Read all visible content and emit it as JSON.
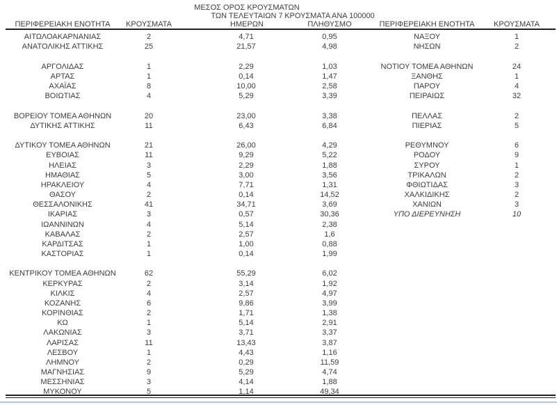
{
  "columns": {
    "left": {
      "region_header": "ΠΕΡΙΦΕΡΕΙΑΚΗ ΕΝΟΤΗΤΑ",
      "cases_header": "ΚΡΟΥΣΜΑΤΑ",
      "avg7_header_lines": [
        "ΜΕΣΟΣ ΟΡΟΣ ΚΡΟΥΣΜΑΤΩΝ",
        "ΤΩΝ ΤΕΛΕΥΤΑΙΩΝ 7",
        "ΗΜΕΡΩΝ"
      ],
      "per100k_header_lines": [
        "ΚΡΟΥΣΜΑΤΑ ΑΝΑ 100000",
        "ΠΛΗΘΥΣΜΟ"
      ]
    },
    "right": {
      "region_header": "ΠΕΡΙΦΕΡΕΙΑΚΗ ΕΝΟΤΗΤΑ",
      "cases_header": "ΚΡΟΥΣΜΑΤΑ"
    }
  },
  "left_rows": [
    {
      "region": "ΑΙΤΩΛΟΑΚΑΡΝΑΝΙΑΣ",
      "cases": "2",
      "avg7": "4,71",
      "per100k": "0,95"
    },
    {
      "region": "ΑΝΑΤΟΛΙΚΗΣ ΑΤΤΙΚΗΣ",
      "cases": "25",
      "avg7": "21,57",
      "per100k": "4,98"
    },
    null,
    {
      "region": "ΑΡΓΟΛΙΔΑΣ",
      "cases": "1",
      "avg7": "2,29",
      "per100k": "1,03"
    },
    {
      "region": "ΑΡΤΑΣ",
      "cases": "1",
      "avg7": "0,14",
      "per100k": "1,47"
    },
    {
      "region": "ΑΧΑΪΑΣ",
      "cases": "8",
      "avg7": "10,00",
      "per100k": "2,58"
    },
    {
      "region": "ΒΟΙΩΤΙΑΣ",
      "cases": "4",
      "avg7": "5,29",
      "per100k": "3,39"
    },
    null,
    {
      "region": "ΒΟΡΕΙΟΥ ΤΟΜΕΑ ΑΘΗΝΩΝ",
      "cases": "20",
      "avg7": "23,00",
      "per100k": "3,38"
    },
    {
      "region": "ΔΥΤΙΚΗΣ ΑΤΤΙΚΗΣ",
      "cases": "11",
      "avg7": "6,43",
      "per100k": "6,84"
    },
    null,
    {
      "region": "ΔΥΤΙΚΟΥ ΤΟΜΕΑ ΑΘΗΝΩΝ",
      "cases": "21",
      "avg7": "26,00",
      "per100k": "4,29"
    },
    {
      "region": "ΕΥΒΟΙΑΣ",
      "cases": "11",
      "avg7": "9,29",
      "per100k": "5,22"
    },
    {
      "region": "ΗΛΕΙΑΣ",
      "cases": "3",
      "avg7": "2,29",
      "per100k": "1,88"
    },
    {
      "region": "ΗΜΑΘΙΑΣ",
      "cases": "5",
      "avg7": "3,00",
      "per100k": "3,56"
    },
    {
      "region": "ΗΡΑΚΛΕΙΟΥ",
      "cases": "4",
      "avg7": "7,71",
      "per100k": "1,31"
    },
    {
      "region": "ΘΑΣΟΥ",
      "cases": "2",
      "avg7": "0,14",
      "per100k": "14,52"
    },
    {
      "region": "ΘΕΣΣΑΛΟΝΙΚΗΣ",
      "cases": "41",
      "avg7": "34,71",
      "per100k": "3,69"
    },
    {
      "region": "ΙΚΑΡΙΑΣ",
      "cases": "3",
      "avg7": "0,57",
      "per100k": "30,36"
    },
    {
      "region": "ΙΩΑΝΝΙΝΩΝ",
      "cases": "4",
      "avg7": "5,14",
      "per100k": "2,38"
    },
    {
      "region": "ΚΑΒΑΛΑΣ",
      "cases": "2",
      "avg7": "2,57",
      "per100k": "1,6"
    },
    {
      "region": "ΚΑΡΔΙΤΣΑΣ",
      "cases": "1",
      "avg7": "1,00",
      "per100k": "0,88"
    },
    {
      "region": "ΚΑΣΤΟΡΙΑΣ",
      "cases": "1",
      "avg7": "0,14",
      "per100k": "1,99"
    },
    null,
    {
      "region": "ΚΕΝΤΡΙΚΟΥ ΤΟΜΕΑ ΑΘΗΝΩΝ",
      "cases": "62",
      "avg7": "55,29",
      "per100k": "6,02"
    },
    {
      "region": "ΚΕΡΚΥΡΑΣ",
      "cases": "2",
      "avg7": "3,14",
      "per100k": "1,92"
    },
    {
      "region": "ΚΙΛΚΙΣ",
      "cases": "4",
      "avg7": "2,57",
      "per100k": "4,97"
    },
    {
      "region": "ΚΟΖΑΝΗΣ",
      "cases": "6",
      "avg7": "9,86",
      "per100k": "3,99"
    },
    {
      "region": "ΚΟΡΙΝΘΙΑΣ",
      "cases": "2",
      "avg7": "1,71",
      "per100k": "1,38"
    },
    {
      "region": "ΚΩ",
      "cases": "1",
      "avg7": "5,14",
      "per100k": "2,91"
    },
    {
      "region": "ΛΑΚΩΝΙΑΣ",
      "cases": "3",
      "avg7": "3,71",
      "per100k": "3,37"
    },
    {
      "region": "ΛΑΡΙΣΑΣ",
      "cases": "11",
      "avg7": "13,43",
      "per100k": "3,87"
    },
    {
      "region": "ΛΕΣΒΟΥ",
      "cases": "1",
      "avg7": "4,43",
      "per100k": "1,16"
    },
    {
      "region": "ΛΗΜΝΟΥ",
      "cases": "2",
      "avg7": "0,29",
      "per100k": "11,59"
    },
    {
      "region": "ΜΑΓΝΗΣΙΑΣ",
      "cases": "9",
      "avg7": "5,29",
      "per100k": "4,74"
    },
    {
      "region": "ΜΕΣΣΗΝΙΑΣ",
      "cases": "3",
      "avg7": "4,14",
      "per100k": "1,88"
    },
    {
      "region": "ΜΥΚΟΝΟΥ",
      "cases": "5",
      "avg7": "1,14",
      "per100k": "49,34"
    }
  ],
  "right_rows": [
    {
      "region": "ΝΑΞΟΥ",
      "cases": "1"
    },
    {
      "region": "ΝΗΣΩΝ",
      "cases": "2"
    },
    null,
    {
      "region": "ΝΟΤΙΟΥ ΤΟΜΕΑ ΑΘΗΝΩΝ",
      "cases": "24"
    },
    {
      "region": "ΞΑΝΘΗΣ",
      "cases": "1"
    },
    {
      "region": "ΠΑΡΟΥ",
      "cases": "4"
    },
    {
      "region": "ΠΕΙΡΑΙΩΣ",
      "cases": "32"
    },
    null,
    {
      "region": "ΠΕΛΛΑΣ",
      "cases": "2"
    },
    {
      "region": "ΠΙΕΡΙΑΣ",
      "cases": "5"
    },
    null,
    {
      "region": "ΡΕΘΥΜΝΟΥ",
      "cases": "6"
    },
    {
      "region": "ΡΟΔΟΥ",
      "cases": "9"
    },
    {
      "region": "ΣΥΡΟΥ",
      "cases": "1"
    },
    {
      "region": "ΤΡΙΚΑΛΩΝ",
      "cases": "2"
    },
    {
      "region": "ΦΘΙΩΤΙΔΑΣ",
      "cases": "3"
    },
    {
      "region": "ΧΑΛΚΙΔΙΚΗΣ",
      "cases": "2"
    },
    {
      "region": "ΧΑΝΙΩΝ",
      "cases": "3"
    },
    {
      "region": "ΥΠΟ ΔΙΕΡΕΥΝΗΣΗ",
      "cases": "10",
      "italic": true
    }
  ],
  "colors": {
    "text": "#3c3c3c",
    "rule": "#1c1c1c",
    "bottom_edge": "#b3c3e0",
    "background": "#ffffff"
  }
}
